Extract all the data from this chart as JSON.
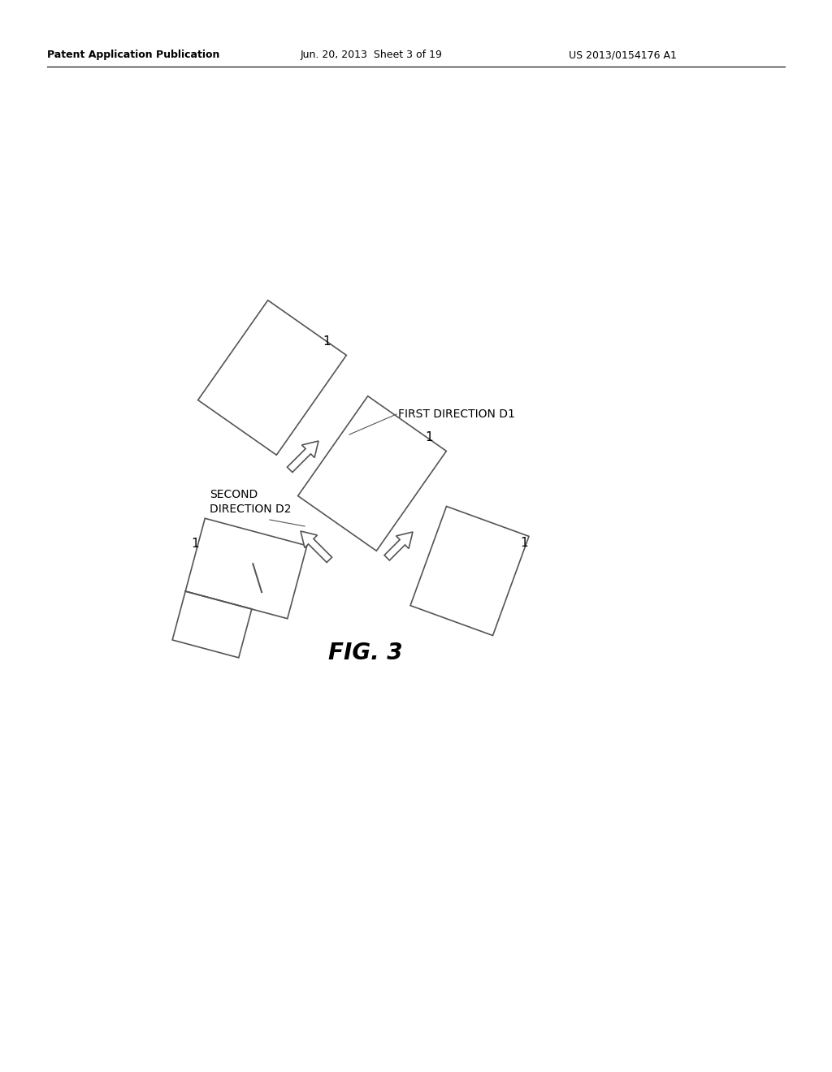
{
  "header_left": "Patent Application Publication",
  "header_mid": "Jun. 20, 2013  Sheet 3 of 19",
  "header_right": "US 2013/0154176 A1",
  "fig_label": "FIG. 3",
  "bg_color": "#ffffff",
  "line_color": "#404040",
  "label_1": "1",
  "first_direction_label": "FIRST DIRECTION D1",
  "second_direction_label": "SECOND\nDIRECTION D2"
}
